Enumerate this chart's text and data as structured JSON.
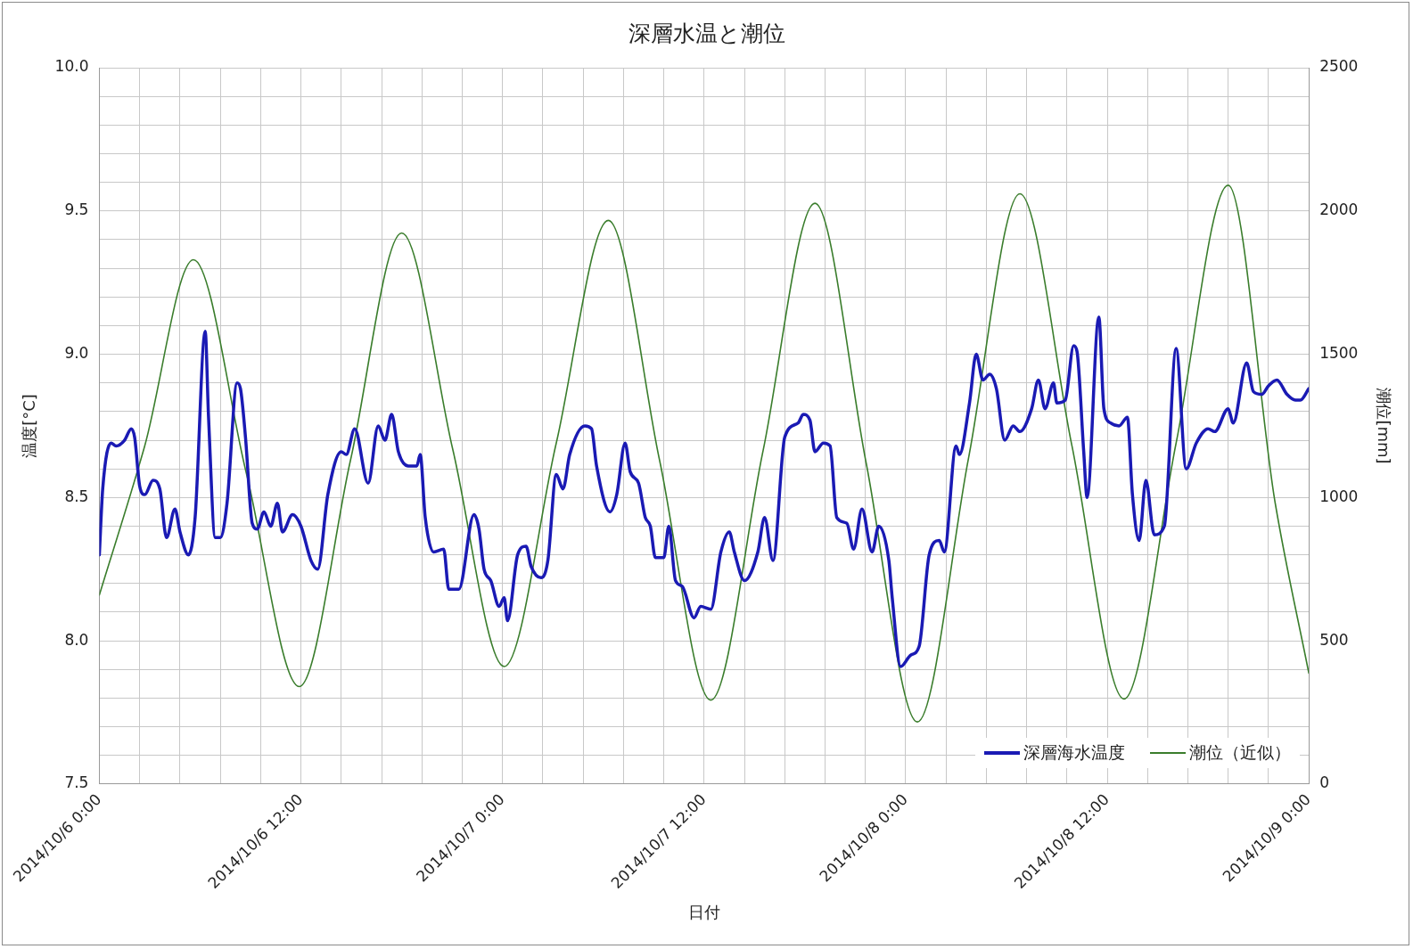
{
  "chart_data": {
    "type": "line",
    "title": "深層水温と潮位",
    "xlabel": "日付",
    "ylabel": "温度[°C]",
    "y2label": "潮位[mm]",
    "xlim": [
      "2014-10-06T00:00",
      "2014-10-09T00:00"
    ],
    "xticks": [
      {
        "value": "2014-10-06T00:00",
        "label": "2014/10/6 0:00"
      },
      {
        "value": "2014-10-06T02:24",
        "label": null
      },
      {
        "value": "2014-10-06T04:48",
        "label": null
      },
      {
        "value": "2014-10-06T07:12",
        "label": null
      },
      {
        "value": "2014-10-06T09:36",
        "label": null
      },
      {
        "value": "2014-10-06T12:00",
        "label": "2014/10/6 12:00"
      },
      {
        "value": "2014-10-06T14:24",
        "label": null
      },
      {
        "value": "2014-10-06T16:48",
        "label": null
      },
      {
        "value": "2014-10-06T19:12",
        "label": null
      },
      {
        "value": "2014-10-06T21:36",
        "label": null
      },
      {
        "value": "2014-10-07T00:00",
        "label": "2014/10/7 0:00"
      },
      {
        "value": "2014-10-07T02:24",
        "label": null
      },
      {
        "value": "2014-10-07T04:48",
        "label": null
      },
      {
        "value": "2014-10-07T07:12",
        "label": null
      },
      {
        "value": "2014-10-07T09:36",
        "label": null
      },
      {
        "value": "2014-10-07T12:00",
        "label": "2014/10/7 12:00"
      },
      {
        "value": "2014-10-07T14:24",
        "label": null
      },
      {
        "value": "2014-10-07T16:48",
        "label": null
      },
      {
        "value": "2014-10-07T19:12",
        "label": null
      },
      {
        "value": "2014-10-07T21:36",
        "label": null
      },
      {
        "value": "2014-10-08T00:00",
        "label": "2014/10/8 0:00"
      },
      {
        "value": "2014-10-08T02:24",
        "label": null
      },
      {
        "value": "2014-10-08T04:48",
        "label": null
      },
      {
        "value": "2014-10-08T07:12",
        "label": null
      },
      {
        "value": "2014-10-08T09:36",
        "label": null
      },
      {
        "value": "2014-10-08T12:00",
        "label": "2014/10/8 12:00"
      },
      {
        "value": "2014-10-08T14:24",
        "label": null
      },
      {
        "value": "2014-10-08T16:48",
        "label": null
      },
      {
        "value": "2014-10-08T19:12",
        "label": null
      },
      {
        "value": "2014-10-08T21:36",
        "label": null
      },
      {
        "value": "2014-10-09T00:00",
        "label": "2014/10/9 0:00"
      }
    ],
    "ylim": [
      7.5,
      10
    ],
    "yticks": [
      {
        "value": 7.5,
        "label": "7.5"
      },
      {
        "value": 7.6,
        "label": null
      },
      {
        "value": 7.7,
        "label": null
      },
      {
        "value": 7.8,
        "label": null
      },
      {
        "value": 7.9,
        "label": null
      },
      {
        "value": 8,
        "label": "8.0"
      },
      {
        "value": 8.1,
        "label": null
      },
      {
        "value": 8.2,
        "label": null
      },
      {
        "value": 8.3,
        "label": null
      },
      {
        "value": 8.4,
        "label": null
      },
      {
        "value": 8.5,
        "label": "8.5"
      },
      {
        "value": 8.6,
        "label": null
      },
      {
        "value": 8.7,
        "label": null
      },
      {
        "value": 8.8,
        "label": null
      },
      {
        "value": 8.9,
        "label": null
      },
      {
        "value": 9,
        "label": "9.0"
      },
      {
        "value": 9.1,
        "label": null
      },
      {
        "value": 9.2,
        "label": null
      },
      {
        "value": 9.3,
        "label": null
      },
      {
        "value": 9.4,
        "label": null
      },
      {
        "value": 9.5,
        "label": "9.5"
      },
      {
        "value": 9.6,
        "label": null
      },
      {
        "value": 9.7,
        "label": null
      },
      {
        "value": 9.8,
        "label": null
      },
      {
        "value": 9.9,
        "label": null
      },
      {
        "value": 10,
        "label": "10.0"
      }
    ],
    "y2lim": [
      0,
      2500
    ],
    "y2ticks": [
      0,
      500,
      1000,
      1500,
      2000,
      2500
    ],
    "grid": true,
    "legend": "bottom right",
    "marker": "none",
    "line_style": "solid",
    "series": [
      {
        "name": "深層海水温度",
        "color": "#1a1ab4",
        "x": [
          "2014-10-06T00:00",
          "2014-10-06T00:12",
          "2014-10-06T00:42",
          "2014-10-06T01:00",
          "2014-10-06T01:30",
          "2014-10-06T01:54",
          "2014-10-06T02:06",
          "2014-10-06T02:24",
          "2014-10-06T02:42",
          "2014-10-06T03:12",
          "2014-10-06T03:36",
          "2014-10-06T04:00",
          "2014-10-06T04:30",
          "2014-10-06T04:48",
          "2014-10-06T05:18",
          "2014-10-06T05:42",
          "2014-10-06T06:18",
          "2014-10-06T06:30",
          "2014-10-06T06:54",
          "2014-10-06T07:12",
          "2014-10-06T07:36",
          "2014-10-06T08:12",
          "2014-10-06T08:24",
          "2014-10-06T08:42",
          "2014-10-06T09:06",
          "2014-10-06T09:24",
          "2014-10-06T09:48",
          "2014-10-06T10:12",
          "2014-10-06T10:36",
          "2014-10-06T10:54",
          "2014-10-06T11:30",
          "2014-10-06T12:00",
          "2014-10-06T12:36",
          "2014-10-06T13:00",
          "2014-10-06T13:36",
          "2014-10-06T14:24",
          "2014-10-06T14:42",
          "2014-10-06T15:12",
          "2014-10-06T16:00",
          "2014-10-06T16:36",
          "2014-10-06T17:00",
          "2014-10-06T17:24",
          "2014-10-06T17:48",
          "2014-10-06T18:24",
          "2014-10-06T18:54",
          "2014-10-06T19:06",
          "2014-10-06T19:24",
          "2014-10-06T19:54",
          "2014-10-06T20:30",
          "2014-10-06T20:48",
          "2014-10-06T21:24",
          "2014-10-06T22:18",
          "2014-10-06T22:36",
          "2014-10-06T22:54",
          "2014-10-06T23:18",
          "2014-10-06T23:48",
          "2014-10-07T00:06",
          "2014-10-07T00:18",
          "2014-10-07T00:54",
          "2014-10-07T01:24",
          "2014-10-07T01:42",
          "2014-10-07T02:18",
          "2014-10-07T02:42",
          "2014-10-07T03:12",
          "2014-10-07T03:36",
          "2014-10-07T04:00",
          "2014-10-07T04:54",
          "2014-10-07T05:18",
          "2014-10-07T05:36",
          "2014-10-07T06:24",
          "2014-10-07T06:48",
          "2014-10-07T07:18",
          "2014-10-07T07:36",
          "2014-10-07T08:06",
          "2014-10-07T08:30",
          "2014-10-07T08:48",
          "2014-10-07T09:06",
          "2014-10-07T09:36",
          "2014-10-07T09:54",
          "2014-10-07T10:18",
          "2014-10-07T10:42",
          "2014-10-07T11:24",
          "2014-10-07T11:48",
          "2014-10-07T12:24",
          "2014-10-07T13:00",
          "2014-10-07T13:30",
          "2014-10-07T13:48",
          "2014-10-07T14:24",
          "2014-10-07T15:12",
          "2014-10-07T15:36",
          "2014-10-07T16:06",
          "2014-10-07T16:48",
          "2014-10-07T17:36",
          "2014-10-07T17:54",
          "2014-10-07T18:18",
          "2014-10-07T18:36",
          "2014-10-07T19:06",
          "2014-10-07T19:30",
          "2014-10-07T19:54",
          "2014-10-07T20:30",
          "2014-10-07T20:54",
          "2014-10-07T21:24",
          "2014-10-07T22:00",
          "2014-10-07T22:24",
          "2014-10-07T23:00",
          "2014-10-07T23:12",
          "2014-10-07T23:42",
          "2014-10-08T00:18",
          "2014-10-08T00:48",
          "2014-10-08T01:24",
          "2014-10-08T02:00",
          "2014-10-08T02:18",
          "2014-10-08T03:00",
          "2014-10-08T03:12",
          "2014-10-08T03:48",
          "2014-10-08T04:12",
          "2014-10-08T04:36",
          "2014-10-08T05:00",
          "2014-10-08T05:24",
          "2014-10-08T05:54",
          "2014-10-08T06:24",
          "2014-10-08T06:48",
          "2014-10-08T07:30",
          "2014-10-08T07:54",
          "2014-10-08T08:18",
          "2014-10-08T08:48",
          "2014-10-08T09:00",
          "2014-10-08T09:30",
          "2014-10-08T10:00",
          "2014-10-08T10:12",
          "2014-10-08T10:36",
          "2014-10-08T10:48",
          "2014-10-08T11:30",
          "2014-10-08T11:48",
          "2014-10-08T12:12",
          "2014-10-08T12:42",
          "2014-10-08T13:12",
          "2014-10-08T13:30",
          "2014-10-08T13:54",
          "2014-10-08T14:18",
          "2014-10-08T14:48",
          "2014-10-08T15:24",
          "2014-10-08T16:06",
          "2014-10-08T16:42",
          "2014-10-08T17:18",
          "2014-10-08T18:00",
          "2014-10-08T18:24",
          "2014-10-08T19:12",
          "2014-10-08T19:30",
          "2014-10-08T20:18",
          "2014-10-08T20:42",
          "2014-10-08T21:12",
          "2014-10-08T21:36",
          "2014-10-08T22:06",
          "2014-10-08T22:42",
          "2014-10-08T23:12",
          "2014-10-08T23:30",
          "2014-10-09T00:00"
        ],
        "values": [
          8.3,
          8.53,
          8.69,
          8.68,
          8.7,
          8.74,
          8.71,
          8.54,
          8.51,
          8.56,
          8.53,
          8.36,
          8.46,
          8.38,
          8.3,
          8.43,
          9.08,
          8.78,
          8.36,
          8.36,
          8.48,
          8.9,
          8.88,
          8.71,
          8.41,
          8.39,
          8.45,
          8.4,
          8.48,
          8.38,
          8.44,
          8.4,
          8.28,
          8.25,
          8.51,
          8.66,
          8.65,
          8.74,
          8.55,
          8.75,
          8.7,
          8.79,
          8.66,
          8.61,
          8.61,
          8.65,
          8.43,
          8.31,
          8.32,
          8.18,
          8.18,
          8.44,
          8.39,
          8.25,
          8.21,
          8.12,
          8.15,
          8.07,
          8.3,
          8.33,
          8.26,
          8.22,
          8.28,
          8.58,
          8.53,
          8.65,
          8.75,
          8.74,
          8.61,
          8.45,
          8.51,
          8.69,
          8.59,
          8.55,
          8.43,
          8.4,
          8.29,
          8.29,
          8.4,
          8.21,
          8.19,
          8.08,
          8.12,
          8.11,
          8.31,
          8.38,
          8.31,
          8.21,
          8.31,
          8.43,
          8.28,
          8.71,
          8.76,
          8.79,
          8.77,
          8.66,
          8.69,
          8.68,
          8.43,
          8.41,
          8.32,
          8.46,
          8.31,
          8.4,
          8.28,
          8.15,
          7.91,
          7.95,
          7.98,
          8.3,
          8.35,
          8.31,
          8.68,
          8.65,
          8.83,
          9.0,
          8.91,
          8.93,
          8.88,
          8.7,
          8.75,
          8.73,
          8.81,
          8.91,
          8.81,
          8.9,
          8.83,
          8.84,
          9.03,
          9.01,
          8.66,
          8.5,
          9.13,
          8.81,
          8.76,
          8.75,
          8.78,
          8.51,
          8.35,
          8.56,
          8.37,
          8.4,
          9.02,
          8.6,
          8.69,
          8.74,
          8.73,
          8.81,
          8.76,
          8.97,
          8.87,
          8.86,
          8.89,
          8.91,
          8.86,
          8.84,
          8.84,
          8.88
        ]
      },
      {
        "name": "潮位（近似）",
        "color": "#3a7d2c",
        "axis": "y2",
        "x": [
          "2014-10-06T00:00",
          "2014-10-06T02:42",
          "2014-10-06T05:36",
          "2014-10-06T08:45",
          "2014-10-06T11:54",
          "2014-10-06T14:57",
          "2014-10-06T18:00",
          "2014-10-06T21:03",
          "2014-10-07T00:06",
          "2014-10-07T03:12",
          "2014-10-07T06:18",
          "2014-10-07T09:21",
          "2014-10-07T12:24",
          "2014-10-07T15:30",
          "2014-10-07T18:36",
          "2014-10-07T21:39",
          "2014-10-08T00:42",
          "2014-10-08T03:45",
          "2014-10-08T06:48",
          "2014-10-08T09:54",
          "2014-10-08T13:00",
          "2014-10-08T16:06",
          "2014-10-08T19:12",
          "2014-10-08T22:00",
          "2014-10-09T00:00"
        ],
        "values": [
          660,
          1180,
          1830,
          1085,
          340,
          1130,
          1923,
          1165,
          410,
          1190,
          1967,
          1130,
          293,
          1160,
          2027,
          1120,
          217,
          1140,
          2060,
          1180,
          297,
          1190,
          2090,
          980,
          387
        ]
      }
    ]
  }
}
